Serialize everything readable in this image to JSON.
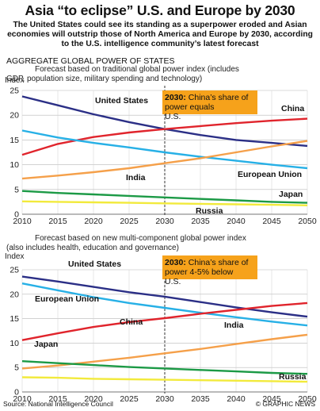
{
  "title": "Asia “to eclipse” U.S. and Europe by 2030",
  "subtitle": "The United States could see its standing as a superpower eroded and Asian economies will outstrip those of North America and Europe by 2030, according to the U.S. intelligence community’s latest forecast",
  "section_heading": "AGGREGATE GLOBAL POWER OF STATES",
  "source": "Source: National Intelligence Council",
  "credit": "© GRAPHIC NEWS",
  "colors": {
    "United States": "#2b2f86",
    "China": "#e0242c",
    "India": "#f5a04a",
    "European Union": "#27b0e6",
    "Japan": "#1c9a46",
    "Russia": "#f2ea3c",
    "annotation_bg": "#f6a21b",
    "divider": "#333333"
  },
  "chart_data": [
    {
      "type": "line",
      "description": "Forecast based on traditional global power index (includes GDP, population size, military spending and technology)",
      "ylabel": "Index",
      "xlim": [
        2010,
        2050
      ],
      "ylim": [
        0,
        25
      ],
      "x_ticks": [
        2010,
        2015,
        2020,
        2025,
        2030,
        2035,
        2040,
        2045,
        2050
      ],
      "y_ticks": [
        0,
        5,
        10,
        15,
        20,
        25
      ],
      "grid": true,
      "annotation": {
        "year": "2030:",
        "text": "China’s share of power equals U.S."
      },
      "x": [
        2010,
        2015,
        2020,
        2025,
        2030,
        2035,
        2040,
        2045,
        2050
      ],
      "series": [
        {
          "name": "United States",
          "values": [
            23.8,
            22.0,
            20.2,
            18.6,
            17.2,
            16.0,
            15.0,
            14.4,
            13.8
          ]
        },
        {
          "name": "China",
          "values": [
            12.0,
            14.2,
            15.6,
            16.5,
            17.2,
            17.8,
            18.4,
            18.9,
            19.3
          ]
        },
        {
          "name": "European Union",
          "values": [
            16.9,
            15.5,
            14.4,
            13.5,
            12.5,
            11.6,
            10.8,
            10.0,
            9.3
          ]
        },
        {
          "name": "India",
          "values": [
            7.2,
            7.8,
            8.5,
            9.3,
            10.3,
            11.3,
            12.5,
            13.7,
            14.8
          ]
        },
        {
          "name": "Japan",
          "values": [
            4.7,
            4.3,
            4.0,
            3.7,
            3.4,
            3.1,
            2.8,
            2.5,
            2.3
          ]
        },
        {
          "name": "Russia",
          "values": [
            2.6,
            2.5,
            2.4,
            2.3,
            2.2,
            2.1,
            2.0,
            1.9,
            1.8
          ]
        }
      ]
    },
    {
      "type": "line",
      "description": "Forecast based on new multi-component global power index (also includes health, education and governance)",
      "ylabel": "Index",
      "xlim": [
        2010,
        2050
      ],
      "ylim": [
        0,
        25
      ],
      "x_ticks": [
        2010,
        2015,
        2020,
        2025,
        2030,
        2035,
        2040,
        2045,
        2050
      ],
      "y_ticks": [
        0,
        5,
        10,
        15,
        20,
        25
      ],
      "grid": true,
      "annotation": {
        "year": "2030:",
        "text": "China’s share of power 4-5% below U.S."
      },
      "x": [
        2010,
        2015,
        2020,
        2025,
        2030,
        2035,
        2040,
        2045,
        2050
      ],
      "series": [
        {
          "name": "United States",
          "values": [
            23.6,
            22.6,
            21.5,
            20.4,
            19.5,
            18.4,
            17.3,
            16.3,
            15.4
          ]
        },
        {
          "name": "European Union",
          "values": [
            22.2,
            20.8,
            19.4,
            18.2,
            17.2,
            16.2,
            15.3,
            14.4,
            13.6
          ]
        },
        {
          "name": "China",
          "values": [
            10.6,
            12.0,
            13.3,
            14.3,
            15.1,
            16.0,
            16.8,
            17.6,
            18.2
          ]
        },
        {
          "name": "India",
          "values": [
            4.8,
            5.4,
            6.2,
            7.0,
            7.9,
            8.8,
            9.8,
            10.8,
            11.7
          ]
        },
        {
          "name": "Japan",
          "values": [
            6.3,
            5.9,
            5.5,
            5.1,
            4.8,
            4.5,
            4.2,
            3.9,
            3.7
          ]
        },
        {
          "name": "Russia",
          "values": [
            3.0,
            2.9,
            2.7,
            2.6,
            2.5,
            2.4,
            2.3,
            2.2,
            2.1
          ]
        }
      ]
    }
  ]
}
